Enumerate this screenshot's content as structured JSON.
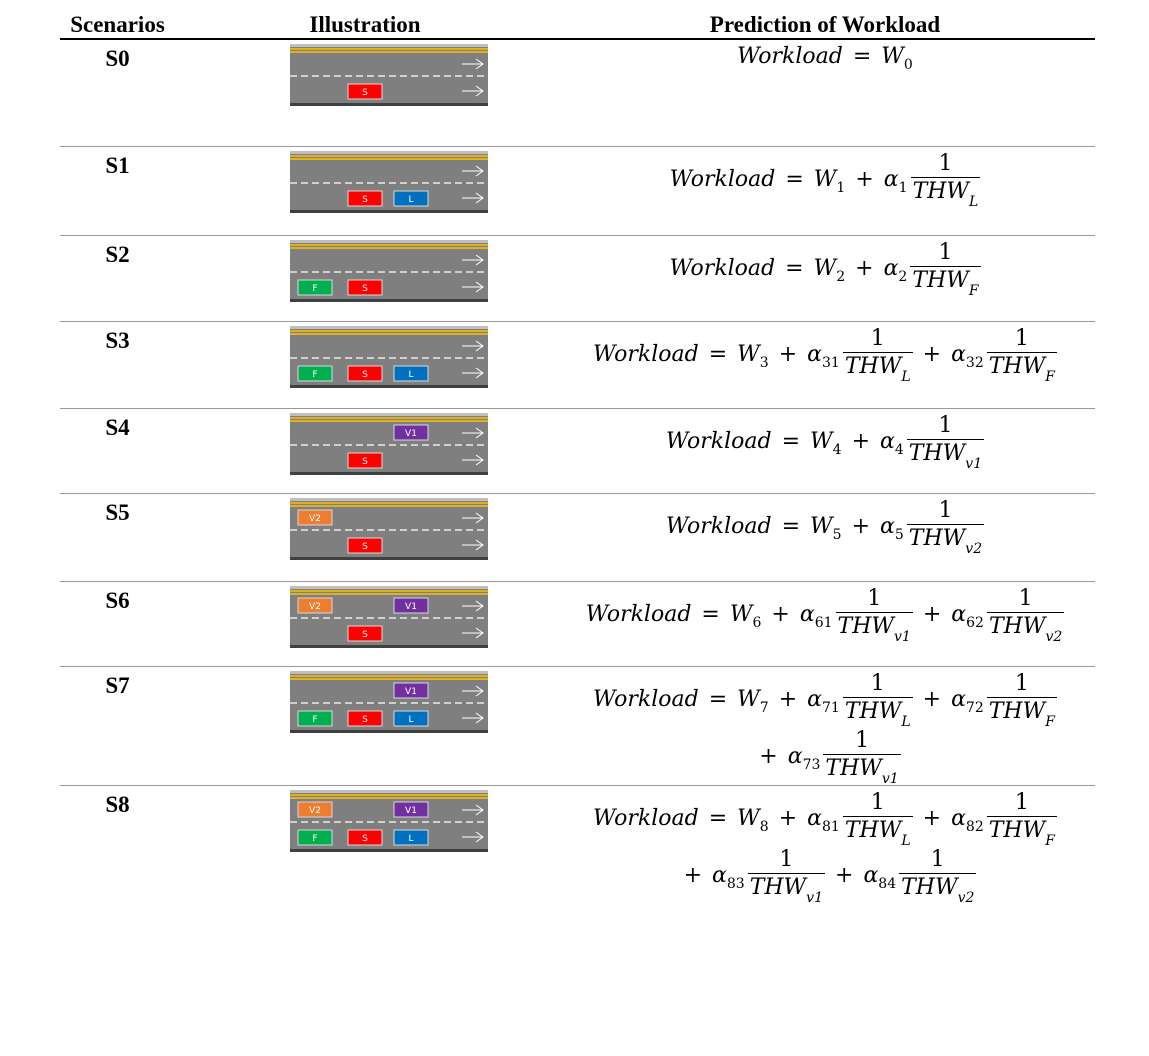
{
  "header": {
    "scenarios": "Scenarios",
    "illustration": "Illustration",
    "prediction": "Prediction of Workload"
  },
  "rows": [
    {
      "scenario": "S0",
      "lanes": [
        [
          null,
          null,
          null
        ],
        [
          null,
          {
            "label": "S",
            "color": "#ff0000"
          },
          null
        ]
      ],
      "formula": {
        "lhs": "Workload",
        "eq": "=",
        "base": "W",
        "base_sub": "0",
        "lines": [
          []
        ]
      }
    },
    {
      "scenario": "S1",
      "lanes": [
        [
          null,
          null,
          null
        ],
        [
          null,
          {
            "label": "S",
            "color": "#ff0000"
          },
          {
            "label": "L",
            "color": "#0070c0"
          }
        ]
      ],
      "formula": {
        "lhs": "Workload",
        "eq": "=",
        "base": "W",
        "base_sub": "1",
        "lines": [
          [
            {
              "op": "+",
              "coef": "α",
              "coef_sub": "1",
              "num": "1",
              "den": "THW",
              "den_sub": "L"
            }
          ]
        ]
      }
    },
    {
      "scenario": "S2",
      "lanes": [
        [
          null,
          null,
          null
        ],
        [
          {
            "label": "F",
            "color": "#00b050"
          },
          {
            "label": "S",
            "color": "#ff0000"
          },
          null
        ]
      ],
      "formula": {
        "lhs": "Workload",
        "eq": "=",
        "base": "W",
        "base_sub": "2",
        "lines": [
          [
            {
              "op": "+",
              "coef": "α",
              "coef_sub": "2",
              "num": "1",
              "den": "THW",
              "den_sub": "F"
            }
          ]
        ]
      }
    },
    {
      "scenario": "S3",
      "lanes": [
        [
          null,
          null,
          null
        ],
        [
          {
            "label": "F",
            "color": "#00b050"
          },
          {
            "label": "S",
            "color": "#ff0000"
          },
          {
            "label": "L",
            "color": "#0070c0"
          }
        ]
      ],
      "formula": {
        "lhs": "Workload",
        "eq": "=",
        "base": "W",
        "base_sub": "3",
        "lines": [
          [
            {
              "op": "+",
              "coef": "α",
              "coef_sub": "31",
              "num": "1",
              "den": "THW",
              "den_sub": "L"
            },
            {
              "op": "+",
              "coef": "α",
              "coef_sub": "32",
              "num": "1",
              "den": "THW",
              "den_sub": "F"
            }
          ]
        ]
      }
    },
    {
      "scenario": "S4",
      "lanes": [
        [
          null,
          null,
          {
            "label": "V1",
            "color": "#7030a0"
          }
        ],
        [
          null,
          {
            "label": "S",
            "color": "#ff0000"
          },
          null
        ]
      ],
      "formula": {
        "lhs": "Workload",
        "eq": "=",
        "base": "W",
        "base_sub": "4",
        "lines": [
          [
            {
              "op": "+",
              "coef": "α",
              "coef_sub": "4",
              "num": "1",
              "den": "THW",
              "den_sub": "v1"
            }
          ]
        ]
      }
    },
    {
      "scenario": "S5",
      "lanes": [
        [
          {
            "label": "V2",
            "color": "#ed7d31"
          },
          null,
          null
        ],
        [
          null,
          {
            "label": "S",
            "color": "#ff0000"
          },
          null
        ]
      ],
      "formula": {
        "lhs": "Workload",
        "eq": "=",
        "base": "W",
        "base_sub": "5",
        "lines": [
          [
            {
              "op": "+",
              "coef": "α",
              "coef_sub": "5",
              "num": "1",
              "den": "THW",
              "den_sub": "v2"
            }
          ]
        ]
      }
    },
    {
      "scenario": "S6",
      "lanes": [
        [
          {
            "label": "V2",
            "color": "#ed7d31"
          },
          null,
          {
            "label": "V1",
            "color": "#7030a0"
          }
        ],
        [
          null,
          {
            "label": "S",
            "color": "#ff0000"
          },
          null
        ]
      ],
      "formula": {
        "lhs": "Workload",
        "eq": "=",
        "base": "W",
        "base_sub": "6",
        "lines": [
          [
            {
              "op": "+",
              "coef": "α",
              "coef_sub": "61",
              "num": "1",
              "den": "THW",
              "den_sub": "v1"
            },
            {
              "op": "+",
              "coef": "α",
              "coef_sub": "62",
              "num": "1",
              "den": "THW",
              "den_sub": "v2"
            }
          ]
        ]
      }
    },
    {
      "scenario": "S7",
      "lanes": [
        [
          null,
          null,
          {
            "label": "V1",
            "color": "#7030a0"
          }
        ],
        [
          {
            "label": "F",
            "color": "#00b050"
          },
          {
            "label": "S",
            "color": "#ff0000"
          },
          {
            "label": "L",
            "color": "#0070c0"
          }
        ]
      ],
      "formula": {
        "lhs": "Workload",
        "eq": "=",
        "base": "W",
        "base_sub": "7",
        "lines": [
          [
            {
              "op": "+",
              "coef": "α",
              "coef_sub": "71",
              "num": "1",
              "den": "THW",
              "den_sub": "L"
            },
            {
              "op": "+",
              "coef": "α",
              "coef_sub": "72",
              "num": "1",
              "den": "THW",
              "den_sub": "F"
            }
          ],
          [
            {
              "op": "+",
              "coef": "α",
              "coef_sub": "73",
              "num": "1",
              "den": "THW",
              "den_sub": "v1"
            }
          ]
        ]
      }
    },
    {
      "scenario": "S8",
      "lanes": [
        [
          {
            "label": "V2",
            "color": "#ed7d31"
          },
          null,
          {
            "label": "V1",
            "color": "#7030a0"
          }
        ],
        [
          {
            "label": "F",
            "color": "#00b050"
          },
          {
            "label": "S",
            "color": "#ff0000"
          },
          {
            "label": "L",
            "color": "#0070c0"
          }
        ]
      ],
      "formula": {
        "lhs": "Workload",
        "eq": "=",
        "base": "W",
        "base_sub": "8",
        "lines": [
          [
            {
              "op": "+",
              "coef": "α",
              "coef_sub": "81",
              "num": "1",
              "den": "THW",
              "den_sub": "L"
            },
            {
              "op": "+",
              "coef": "α",
              "coef_sub": "82",
              "num": "1",
              "den": "THW",
              "den_sub": "F"
            }
          ],
          [
            {
              "op": "+",
              "coef": "α",
              "coef_sub": "83",
              "num": "1",
              "den": "THW",
              "den_sub": "v1"
            },
            {
              "op": "+",
              "coef": "α",
              "coef_sub": "84",
              "num": "1",
              "den": "THW",
              "den_sub": "v2"
            }
          ]
        ]
      }
    }
  ]
}
